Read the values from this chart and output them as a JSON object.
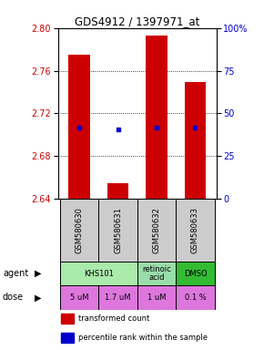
{
  "title": "GDS4912 / 1397971_at",
  "samples": [
    "GSM580630",
    "GSM580631",
    "GSM580632",
    "GSM580633"
  ],
  "ylim_left": [
    2.64,
    2.8
  ],
  "ylim_right": [
    0,
    100
  ],
  "yticks_left": [
    2.64,
    2.68,
    2.72,
    2.76,
    2.8
  ],
  "yticks_right": [
    0,
    25,
    50,
    75,
    100
  ],
  "bar_bottoms": [
    2.64,
    2.64,
    2.64,
    2.64
  ],
  "bar_tops": [
    2.775,
    2.655,
    2.793,
    2.749
  ],
  "blue_y": [
    2.707,
    2.705,
    2.707,
    2.707
  ],
  "bar_color": "#cc0000",
  "blue_color": "#0000cc",
  "left_label_color": "#cc0000",
  "right_label_color": "#0000cc",
  "doses": [
    "5 uM",
    "1.7 uM",
    "1 uM",
    "0.1 %"
  ],
  "dose_color": "#dd77dd",
  "sample_color": "#cccccc",
  "agent_groups": [
    {
      "cols": [
        0,
        1
      ],
      "label": "KHS101",
      "color": "#aaeaaa"
    },
    {
      "cols": [
        2
      ],
      "label": "retinoic\nacid",
      "color": "#99ddaa"
    },
    {
      "cols": [
        3
      ],
      "label": "DMSO",
      "color": "#33bb33"
    }
  ]
}
